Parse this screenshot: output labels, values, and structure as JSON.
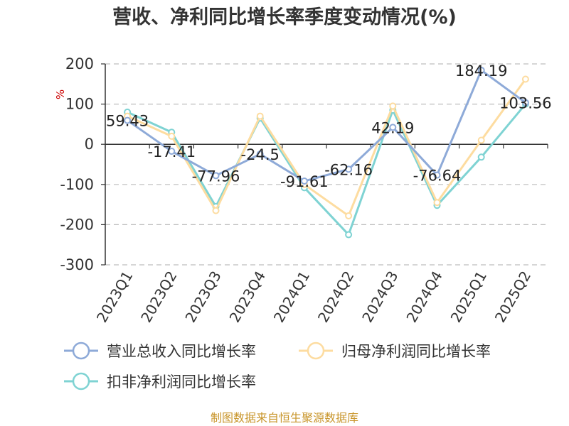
{
  "chart_data": {
    "type": "line",
    "title": "营收、净利同比增长率季度变动情况(%)",
    "ylabel": "%",
    "categories": [
      "2023Q1",
      "2023Q2",
      "2023Q3",
      "2023Q4",
      "2024Q1",
      "2024Q2",
      "2024Q3",
      "2024Q4",
      "2025Q1",
      "2025Q2"
    ],
    "ylim": [
      -300,
      200
    ],
    "yticks": [
      200,
      100,
      0,
      -100,
      -200,
      -300
    ],
    "grid": true,
    "legend_position": "bottom",
    "series": [
      {
        "name": "营业总收入同比增长率",
        "color": "#8eaad8",
        "values": [
          59.43,
          -17.41,
          -77.96,
          -24.5,
          -91.61,
          -62.16,
          42.19,
          -76.64,
          184.19,
          103.56
        ],
        "labels": [
          "59.43",
          "-17.41",
          "-77.96",
          "-24.5",
          "-91.61",
          "-62.16",
          "42.19",
          "-76.64",
          "184.19",
          "103.56"
        ]
      },
      {
        "name": "归母净利润同比增长率",
        "color": "#fddca0",
        "values": [
          70,
          20,
          -165,
          70,
          -100,
          -178,
          95,
          -145,
          10,
          162
        ]
      },
      {
        "name": "扣非净利润同比增长率",
        "color": "#7fd3d3",
        "values": [
          80,
          30,
          -155,
          65,
          -108,
          -225,
          85,
          -152,
          -32,
          100
        ]
      }
    ]
  },
  "source_text": "制图数据来自恒生聚源数据库"
}
